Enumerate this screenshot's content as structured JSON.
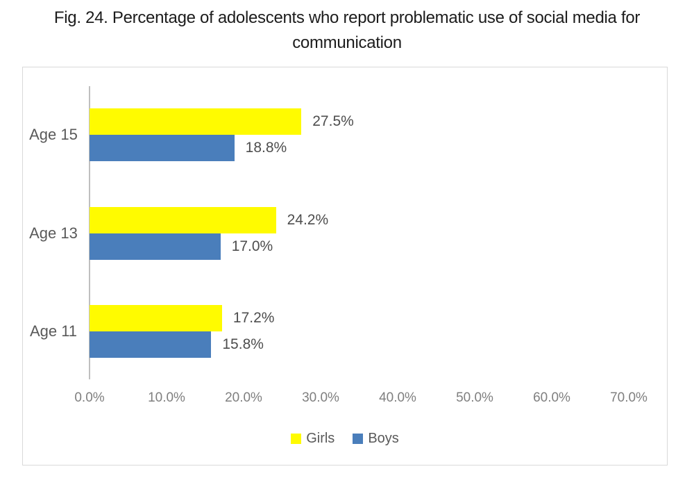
{
  "figure": {
    "title": "Fig. 24. Percentage of adolescents who report problematic use of social media for\ncommunication"
  },
  "chart_data": {
    "type": "bar",
    "orientation": "horizontal",
    "title": "Fig. 24. Percentage of adolescents who report problematic use of social media for communication",
    "categories": [
      "Age 15",
      "Age 13",
      "Age 11"
    ],
    "series": [
      {
        "name": "Girls",
        "color": "#fffb00",
        "values": [
          27.5,
          24.2,
          17.2
        ],
        "labels": [
          "27.5%",
          "24.2%",
          "17.2%"
        ]
      },
      {
        "name": "Boys",
        "color": "#4a7ebb",
        "values": [
          18.8,
          17.0,
          15.8
        ],
        "labels": [
          "18.8%",
          "17.0%",
          "15.8%"
        ]
      }
    ],
    "x_ticks": [
      "0.0%",
      "10.0%",
      "20.0%",
      "30.0%",
      "40.0%",
      "50.0%",
      "60.0%",
      "70.0%"
    ],
    "xlim": [
      0,
      70
    ],
    "xlabel": "",
    "ylabel": "",
    "gridlines": false,
    "legend": {
      "position": "bottom",
      "entries": [
        "Girls",
        "Boys"
      ]
    },
    "colors": {
      "girls_bar": "#fffb00",
      "boys_bar": "#4a7ebb",
      "axis_line": "#bfbfbf",
      "frame_border": "#d9d9d9",
      "label_text": "#595959",
      "tick_text": "#7f7f7f"
    }
  }
}
